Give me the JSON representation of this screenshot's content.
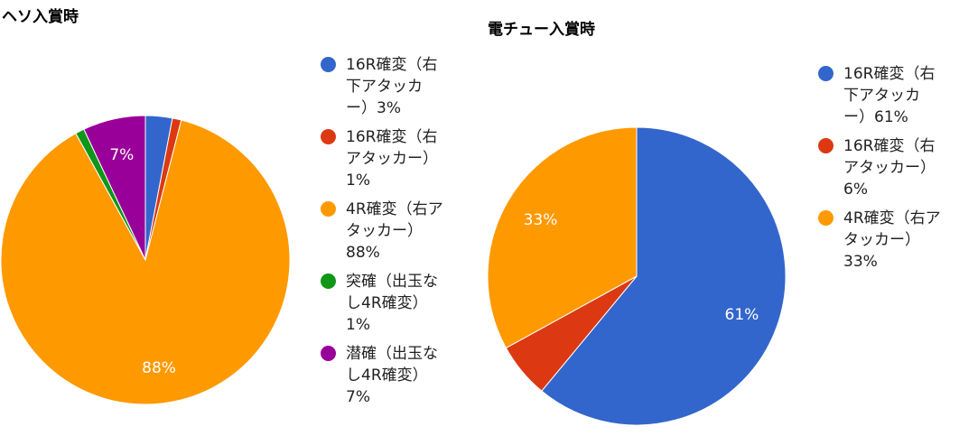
{
  "chart_data": [
    {
      "type": "pie",
      "title": "ヘソ入賞時",
      "series": [
        {
          "name": "16R確変（右下アタッカー）",
          "value": 3,
          "color": "#3366cc",
          "legend": "16R確変（右\n下アタッカ\nー）3%",
          "label": ""
        },
        {
          "name": "16R確変（右アタッカー）",
          "value": 1,
          "color": "#dc3912",
          "legend": "16R確変（右\nアタッカー）\n1%",
          "label": ""
        },
        {
          "name": "4R確変（右アタッカー）",
          "value": 88,
          "color": "#ff9900",
          "legend": "4R確変（右ア\nタッカー）\n88%",
          "label": "88%"
        },
        {
          "name": "突確（出玉なし4R確変）",
          "value": 1,
          "color": "#109618",
          "legend": "突確（出玉な\nし4R確変）\n1%",
          "label": ""
        },
        {
          "name": "潜確（出玉なし4R確変）",
          "value": 7,
          "color": "#990099",
          "legend": "潜確（出玉な\nし4R確変）\n7%",
          "label": "7%"
        }
      ]
    },
    {
      "type": "pie",
      "title": "電チュー入賞時",
      "series": [
        {
          "name": "16R確変（右下アタッカー）",
          "value": 61,
          "color": "#3366cc",
          "legend": "16R確変（右\n下アタッカ\nー）61%",
          "label": "61%"
        },
        {
          "name": "16R確変（右アタッカー）",
          "value": 6,
          "color": "#dc3912",
          "legend": "16R確変（右\nアタッカー）\n6%",
          "label": ""
        },
        {
          "name": "4R確変（右アタッカー）",
          "value": 33,
          "color": "#ff9900",
          "legend": "4R確変（右ア\nタッカー）\n33%",
          "label": "33%"
        }
      ]
    }
  ]
}
